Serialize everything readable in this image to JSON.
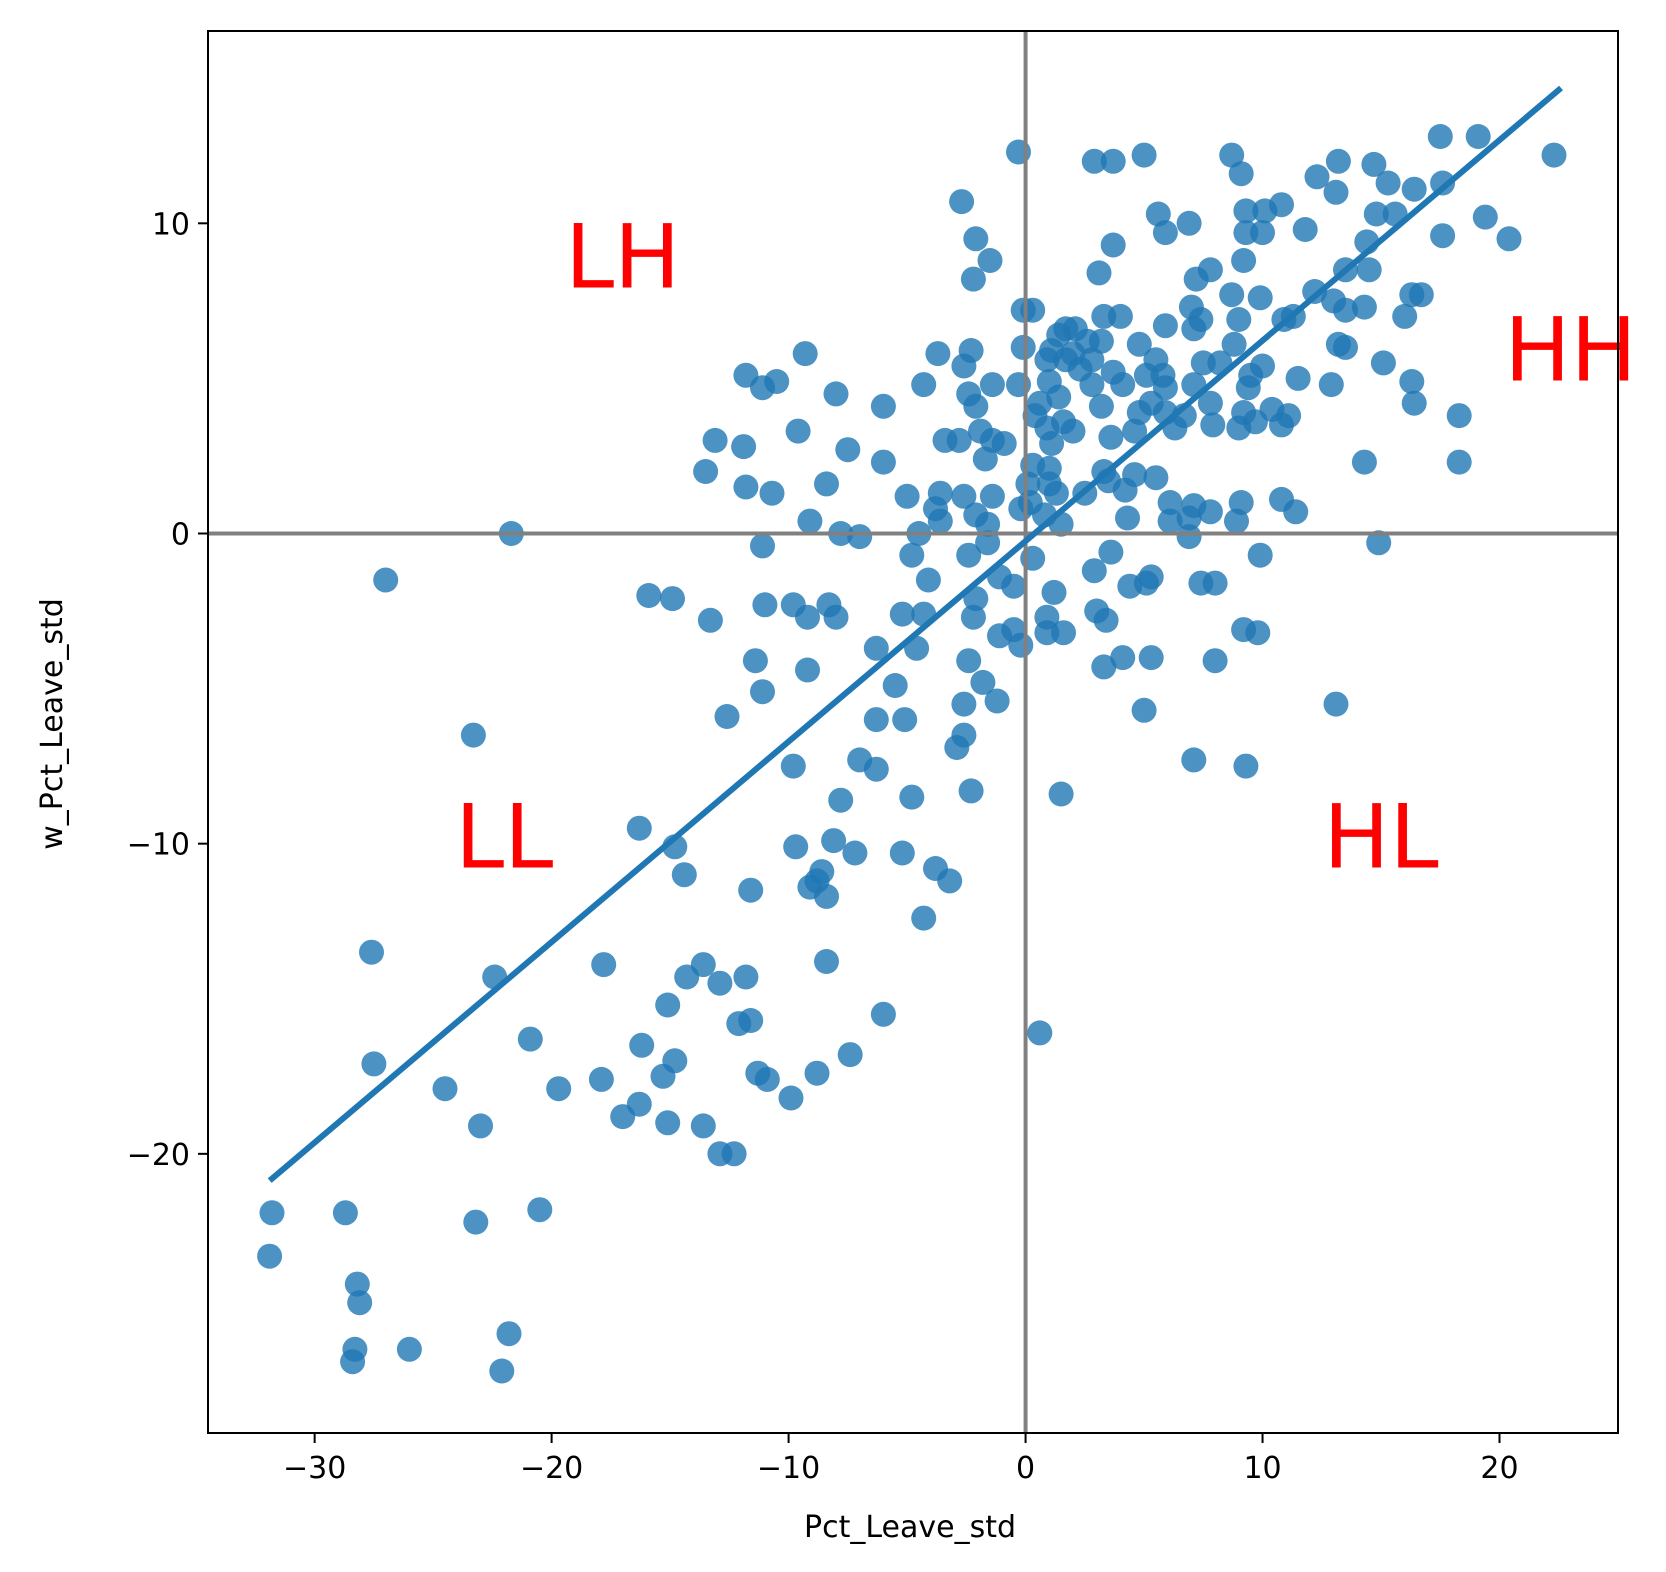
{
  "chart_data": {
    "type": "scatter",
    "title": "",
    "xlabel": "Pct_Leave_std",
    "ylabel": "w_Pct_Leave_std",
    "xlim": [
      -34.5,
      25
    ],
    "ylim": [
      -29,
      16.2
    ],
    "xticks": [
      -30,
      -20,
      -10,
      0,
      10,
      20
    ],
    "yticks": [
      -20,
      -10,
      0,
      10
    ],
    "grid": false,
    "colors": {
      "points": "#1f77b4",
      "fit_line": "#1f77b4",
      "ref_lines": "#808080",
      "quadrant_labels": "#ff0000"
    },
    "reference_lines": {
      "x": 0,
      "y": 0
    },
    "fit_line": {
      "x": [
        -31.8,
        22.5
      ],
      "y": [
        -20.8,
        14.3
      ]
    },
    "quadrant_labels": [
      {
        "text": "LH",
        "x": -17,
        "y": 8.7
      },
      {
        "text": "HH",
        "x": 23,
        "y": 5.7
      },
      {
        "text": "LL",
        "x": -22,
        "y": -10
      },
      {
        "text": "HL",
        "x": 15,
        "y": -10
      }
    ],
    "points": [
      [
        -0.3,
        12.3
      ],
      [
        -2.7,
        10.7
      ],
      [
        -2.1,
        9.5
      ],
      [
        -2.2,
        8.2
      ],
      [
        -1.5,
        8.8
      ],
      [
        2.9,
        12.0
      ],
      [
        3.7,
        12.0
      ],
      [
        5.0,
        12.2
      ],
      [
        8.7,
        12.2
      ],
      [
        9.1,
        11.6
      ],
      [
        13.2,
        12.0
      ],
      [
        14.7,
        11.9
      ],
      [
        17.5,
        12.8
      ],
      [
        19.1,
        12.8
      ],
      [
        22.3,
        12.2
      ],
      [
        12.3,
        11.5
      ],
      [
        13.1,
        11.0
      ],
      [
        15.3,
        11.3
      ],
      [
        16.4,
        11.1
      ],
      [
        17.6,
        11.3
      ],
      [
        10.8,
        10.6
      ],
      [
        9.3,
        10.4
      ],
      [
        10.1,
        10.4
      ],
      [
        14.8,
        10.3
      ],
      [
        15.6,
        10.3
      ],
      [
        19.4,
        10.2
      ],
      [
        5.6,
        10.3
      ],
      [
        6.9,
        10.0
      ],
      [
        5.9,
        9.7
      ],
      [
        9.3,
        9.7
      ],
      [
        10.0,
        9.7
      ],
      [
        11.8,
        9.8
      ],
      [
        17.6,
        9.6
      ],
      [
        20.4,
        9.5
      ],
      [
        3.7,
        9.3
      ],
      [
        14.4,
        9.4
      ],
      [
        9.2,
        8.8
      ],
      [
        3.1,
        8.4
      ],
      [
        7.8,
        8.5
      ],
      [
        13.5,
        8.5
      ],
      [
        14.5,
        8.5
      ],
      [
        7.2,
        8.2
      ],
      [
        12.2,
        7.8
      ],
      [
        16.3,
        7.7
      ],
      [
        16.7,
        7.7
      ],
      [
        8.7,
        7.7
      ],
      [
        9.9,
        7.6
      ],
      [
        13.0,
        7.5
      ],
      [
        -0.1,
        7.2
      ],
      [
        0.3,
        7.2
      ],
      [
        7.0,
        7.3
      ],
      [
        13.5,
        7.2
      ],
      [
        14.3,
        7.3
      ],
      [
        16.0,
        7.0
      ],
      [
        3.3,
        7.0
      ],
      [
        4.0,
        7.0
      ],
      [
        7.4,
        6.9
      ],
      [
        9.0,
        6.9
      ],
      [
        10.9,
        6.9
      ],
      [
        11.3,
        7.0
      ],
      [
        7.1,
        6.6
      ],
      [
        5.9,
        6.7
      ],
      [
        1.7,
        6.6
      ],
      [
        2.1,
        6.6
      ],
      [
        1.4,
        6.4
      ],
      [
        3.2,
        6.2
      ],
      [
        2.6,
        6.2
      ],
      [
        4.8,
        6.1
      ],
      [
        8.8,
        6.1
      ],
      [
        13.2,
        6.1
      ],
      [
        -0.1,
        6.0
      ],
      [
        1.1,
        5.9
      ],
      [
        13.5,
        6.0
      ],
      [
        -3.7,
        5.8
      ],
      [
        -9.3,
        5.8
      ],
      [
        -2.3,
        5.9
      ],
      [
        2.0,
        5.8
      ],
      [
        0.9,
        5.6
      ],
      [
        1.7,
        5.6
      ],
      [
        2.8,
        5.6
      ],
      [
        5.5,
        5.6
      ],
      [
        7.5,
        5.5
      ],
      [
        8.2,
        5.5
      ],
      [
        10.0,
        5.4
      ],
      [
        15.1,
        5.5
      ],
      [
        -2.6,
        5.4
      ],
      [
        2.3,
        5.3
      ],
      [
        3.7,
        5.2
      ],
      [
        5.1,
        5.1
      ],
      [
        5.8,
        5.1
      ],
      [
        9.5,
        5.1
      ],
      [
        11.5,
        5.0
      ],
      [
        12.9,
        4.8
      ],
      [
        16.3,
        4.9
      ],
      [
        -11.8,
        5.1
      ],
      [
        -10.5,
        4.9
      ],
      [
        -11.1,
        4.7
      ],
      [
        -1.4,
        4.8
      ],
      [
        -0.3,
        4.8
      ],
      [
        1.0,
        4.9
      ],
      [
        2.8,
        4.8
      ],
      [
        4.1,
        4.8
      ],
      [
        5.9,
        4.7
      ],
      [
        7.1,
        4.8
      ],
      [
        9.4,
        4.7
      ],
      [
        -8.0,
        4.5
      ],
      [
        -4.3,
        4.8
      ],
      [
        -2.4,
        4.5
      ],
      [
        1.4,
        4.4
      ],
      [
        -6.0,
        4.1
      ],
      [
        -2.1,
        4.1
      ],
      [
        0.6,
        4.2
      ],
      [
        3.2,
        4.1
      ],
      [
        5.3,
        4.2
      ],
      [
        7.8,
        4.2
      ],
      [
        10.4,
        4.0
      ],
      [
        16.4,
        4.2
      ],
      [
        0.4,
        3.8
      ],
      [
        1.6,
        3.6
      ],
      [
        4.8,
        3.9
      ],
      [
        5.9,
        3.9
      ],
      [
        6.7,
        3.8
      ],
      [
        9.2,
        3.9
      ],
      [
        9.7,
        3.6
      ],
      [
        11.1,
        3.8
      ],
      [
        18.3,
        3.8
      ],
      [
        -9.6,
        3.3
      ],
      [
        -1.9,
        3.3
      ],
      [
        0.9,
        3.4
      ],
      [
        2.0,
        3.3
      ],
      [
        4.6,
        3.3
      ],
      [
        6.3,
        3.4
      ],
      [
        7.9,
        3.5
      ],
      [
        9.0,
        3.4
      ],
      [
        10.8,
        3.5
      ],
      [
        -13.1,
        3.0
      ],
      [
        -3.4,
        3.0
      ],
      [
        -2.8,
        3.0
      ],
      [
        -1.4,
        3.0
      ],
      [
        -0.9,
        2.9
      ],
      [
        1.1,
        2.9
      ],
      [
        3.6,
        3.1
      ],
      [
        -11.9,
        2.8
      ],
      [
        -7.5,
        2.7
      ],
      [
        -1.7,
        2.4
      ],
      [
        0.3,
        2.2
      ],
      [
        1.0,
        2.1
      ],
      [
        14.3,
        2.3
      ],
      [
        18.3,
        2.3
      ],
      [
        -13.5,
        2.0
      ],
      [
        -6.0,
        2.3
      ],
      [
        3.3,
        2.0
      ],
      [
        4.6,
        1.9
      ],
      [
        5.5,
        1.8
      ],
      [
        0.1,
        1.6
      ],
      [
        1.0,
        1.6
      ],
      [
        3.5,
        1.7
      ],
      [
        -11.8,
        1.5
      ],
      [
        -8.4,
        1.6
      ],
      [
        -10.7,
        1.3
      ],
      [
        -3.6,
        1.3
      ],
      [
        -2.6,
        1.2
      ],
      [
        -1.4,
        1.2
      ],
      [
        1.3,
        1.3
      ],
      [
        2.5,
        1.3
      ],
      [
        4.2,
        1.4
      ],
      [
        0.2,
        1.0
      ],
      [
        6.1,
        1.0
      ],
      [
        7.1,
        0.9
      ],
      [
        10.8,
        1.1
      ],
      [
        11.4,
        0.7
      ],
      [
        -5.0,
        1.2
      ],
      [
        -3.8,
        0.8
      ],
      [
        -2.1,
        0.6
      ],
      [
        -0.2,
        0.8
      ],
      [
        0.8,
        0.6
      ],
      [
        9.1,
        1.0
      ],
      [
        -9.1,
        0.4
      ],
      [
        -3.6,
        0.4
      ],
      [
        -1.6,
        0.3
      ],
      [
        1.5,
        0.3
      ],
      [
        4.3,
        0.5
      ],
      [
        6.1,
        0.4
      ],
      [
        6.9,
        0.5
      ],
      [
        7.8,
        0.7
      ],
      [
        8.9,
        0.4
      ],
      [
        -21.7,
        0.0
      ],
      [
        -7.8,
        0.0
      ],
      [
        -7.0,
        -0.1
      ],
      [
        -4.5,
        0.0
      ],
      [
        -1.6,
        -0.3
      ],
      [
        6.9,
        -0.1
      ],
      [
        14.9,
        -0.3
      ],
      [
        -11.1,
        -0.4
      ],
      [
        -4.8,
        -0.7
      ],
      [
        -2.4,
        -0.7
      ],
      [
        0.3,
        -0.8
      ],
      [
        3.6,
        -0.6
      ],
      [
        9.9,
        -0.7
      ],
      [
        -27.0,
        -1.5
      ],
      [
        -4.1,
        -1.5
      ],
      [
        -1.1,
        -1.4
      ],
      [
        -0.5,
        -1.7
      ],
      [
        2.9,
        -1.2
      ],
      [
        4.4,
        -1.7
      ],
      [
        5.1,
        -1.6
      ],
      [
        5.3,
        -1.4
      ],
      [
        7.4,
        -1.6
      ],
      [
        8.0,
        -1.6
      ],
      [
        -15.9,
        -2.0
      ],
      [
        -14.9,
        -2.1
      ],
      [
        -11.0,
        -2.3
      ],
      [
        -9.8,
        -2.3
      ],
      [
        -8.3,
        -2.3
      ],
      [
        -2.1,
        -2.1
      ],
      [
        1.2,
        -1.9
      ],
      [
        -13.3,
        -2.8
      ],
      [
        -9.2,
        -2.7
      ],
      [
        -8.0,
        -2.7
      ],
      [
        -5.2,
        -2.6
      ],
      [
        -4.3,
        -2.6
      ],
      [
        -2.2,
        -2.7
      ],
      [
        3.0,
        -2.5
      ],
      [
        3.4,
        -2.8
      ],
      [
        -0.5,
        -3.1
      ],
      [
        0.9,
        -2.7
      ],
      [
        9.2,
        -3.1
      ],
      [
        9.8,
        -3.2
      ],
      [
        -1.1,
        -3.3
      ],
      [
        0.9,
        -3.2
      ],
      [
        1.6,
        -3.2
      ],
      [
        -0.2,
        -3.6
      ],
      [
        -4.6,
        -3.7
      ],
      [
        -6.3,
        -3.7
      ],
      [
        -11.4,
        -4.1
      ],
      [
        -9.2,
        -4.4
      ],
      [
        -2.4,
        -4.1
      ],
      [
        3.3,
        -4.3
      ],
      [
        4.1,
        -4.0
      ],
      [
        5.3,
        -4.0
      ],
      [
        8.0,
        -4.1
      ],
      [
        -11.1,
        -5.1
      ],
      [
        -5.5,
        -4.9
      ],
      [
        -1.8,
        -4.8
      ],
      [
        -1.2,
        -5.4
      ],
      [
        -12.6,
        -5.9
      ],
      [
        -6.3,
        -6.0
      ],
      [
        -5.1,
        -6.0
      ],
      [
        -2.6,
        -5.5
      ],
      [
        5.0,
        -5.7
      ],
      [
        13.1,
        -5.5
      ],
      [
        -23.3,
        -6.5
      ],
      [
        -2.6,
        -6.5
      ],
      [
        -2.9,
        -6.9
      ],
      [
        -7.0,
        -7.3
      ],
      [
        -6.3,
        -7.6
      ],
      [
        -9.8,
        -7.5
      ],
      [
        7.1,
        -7.3
      ],
      [
        9.3,
        -7.5
      ],
      [
        -4.8,
        -8.5
      ],
      [
        -2.3,
        -8.3
      ],
      [
        -7.8,
        -8.6
      ],
      [
        1.5,
        -8.4
      ],
      [
        -16.3,
        -9.5
      ],
      [
        -8.1,
        -9.9
      ],
      [
        -9.7,
        -10.1
      ],
      [
        -14.8,
        -10.1
      ],
      [
        -7.2,
        -10.3
      ],
      [
        -5.2,
        -10.3
      ],
      [
        -8.6,
        -10.9
      ],
      [
        -14.4,
        -11.0
      ],
      [
        -3.8,
        -10.8
      ],
      [
        -8.8,
        -11.2
      ],
      [
        -9.1,
        -11.4
      ],
      [
        -11.6,
        -11.5
      ],
      [
        -3.2,
        -11.2
      ],
      [
        -8.4,
        -11.7
      ],
      [
        -4.3,
        -12.4
      ],
      [
        -27.6,
        -13.5
      ],
      [
        -8.4,
        -13.8
      ],
      [
        -17.8,
        -13.9
      ],
      [
        -13.6,
        -13.9
      ],
      [
        -22.4,
        -14.3
      ],
      [
        -14.3,
        -14.3
      ],
      [
        -12.9,
        -14.5
      ],
      [
        -11.8,
        -14.3
      ],
      [
        -15.1,
        -15.2
      ],
      [
        -12.1,
        -15.8
      ],
      [
        -11.6,
        -15.7
      ],
      [
        -6.0,
        -15.5
      ],
      [
        0.6,
        -16.1
      ],
      [
        -20.9,
        -16.3
      ],
      [
        -16.2,
        -16.5
      ],
      [
        -7.4,
        -16.8
      ],
      [
        -14.8,
        -17.0
      ],
      [
        -27.5,
        -17.1
      ],
      [
        -15.3,
        -17.5
      ],
      [
        -11.3,
        -17.4
      ],
      [
        -17.9,
        -17.6
      ],
      [
        -10.9,
        -17.6
      ],
      [
        -8.8,
        -17.4
      ],
      [
        -24.5,
        -17.9
      ],
      [
        -19.7,
        -17.9
      ],
      [
        -9.9,
        -18.2
      ],
      [
        -16.3,
        -18.4
      ],
      [
        -17.0,
        -18.8
      ],
      [
        -15.1,
        -19.0
      ],
      [
        -13.6,
        -19.1
      ],
      [
        -23.0,
        -19.1
      ],
      [
        -12.9,
        -20.0
      ],
      [
        -12.3,
        -20.0
      ],
      [
        -31.8,
        -21.9
      ],
      [
        -28.7,
        -21.9
      ],
      [
        -20.5,
        -21.8
      ],
      [
        -23.2,
        -22.2
      ],
      [
        -31.9,
        -23.3
      ],
      [
        -28.2,
        -24.2
      ],
      [
        -28.1,
        -24.8
      ],
      [
        -21.8,
        -25.8
      ],
      [
        -28.3,
        -26.3
      ],
      [
        -26.0,
        -26.3
      ],
      [
        -28.4,
        -26.7
      ],
      [
        -22.1,
        -27.0
      ]
    ]
  }
}
